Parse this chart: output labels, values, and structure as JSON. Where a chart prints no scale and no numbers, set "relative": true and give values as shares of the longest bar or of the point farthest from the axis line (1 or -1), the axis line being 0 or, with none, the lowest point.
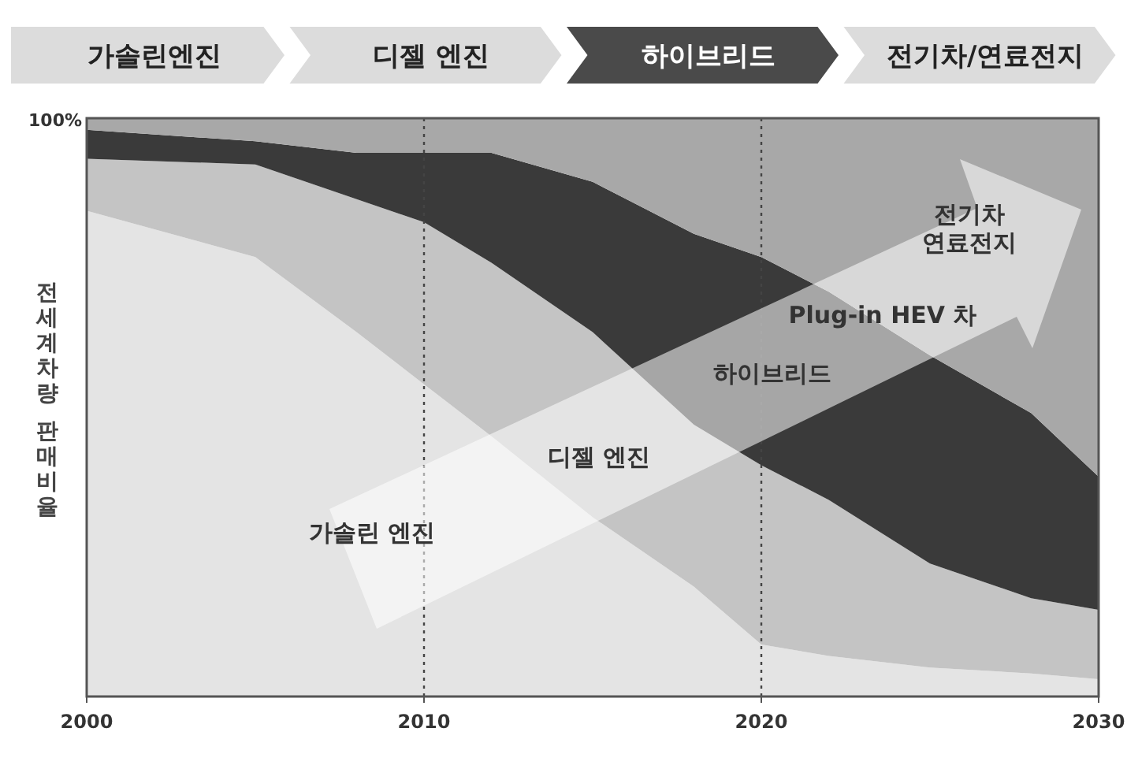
{
  "chart_data": {
    "type": "area",
    "stacked": true,
    "relative": true,
    "ylabel": "전세계차량 판매비율",
    "x": [
      2000,
      2005,
      2008,
      2010,
      2012,
      2015,
      2018,
      2020,
      2022,
      2025,
      2028,
      2030
    ],
    "xlim": [
      2000,
      2030
    ],
    "xticks": [
      2000,
      2010,
      2020,
      2030
    ],
    "grid": false,
    "series": [
      {
        "color": "#e4e4e4",
        "values": [
          0.84,
          0.76,
          0.63,
          0.54,
          0.45,
          0.31,
          0.19,
          0.09,
          0.07,
          0.05,
          0.04,
          0.03
        ]
      },
      {
        "color": "#c4c4c4",
        "values": [
          0.09,
          0.16,
          0.23,
          0.28,
          0.3,
          0.32,
          0.28,
          0.31,
          0.27,
          0.18,
          0.13,
          0.12
        ]
      },
      {
        "color": "#3a3a3a",
        "values": [
          0.05,
          0.04,
          0.08,
          0.12,
          0.19,
          0.26,
          0.33,
          0.36,
          0.36,
          0.36,
          0.32,
          0.23
        ]
      },
      {
        "color": "#a8a8a8",
        "values": [
          0.02,
          0.04,
          0.06,
          0.06,
          0.06,
          0.11,
          0.2,
          0.24,
          0.3,
          0.41,
          0.51,
          0.62
        ]
      }
    ],
    "ref_lines": [
      {
        "axis": "x",
        "value": 2010,
        "line_style": "dotted",
        "color": "#444444"
      },
      {
        "axis": "x",
        "value": 2020,
        "line_style": "dotted",
        "color": "#444444"
      }
    ],
    "annotations": [
      "가솔린엔진",
      "디젤 엔진",
      "하이브리드",
      "전기차/연료전지",
      "100%",
      "가솔린 엔진",
      "디젤 엔진",
      "하이브리드",
      "Plug-in HEV 차",
      "전기차\n연료전지"
    ]
  }
}
